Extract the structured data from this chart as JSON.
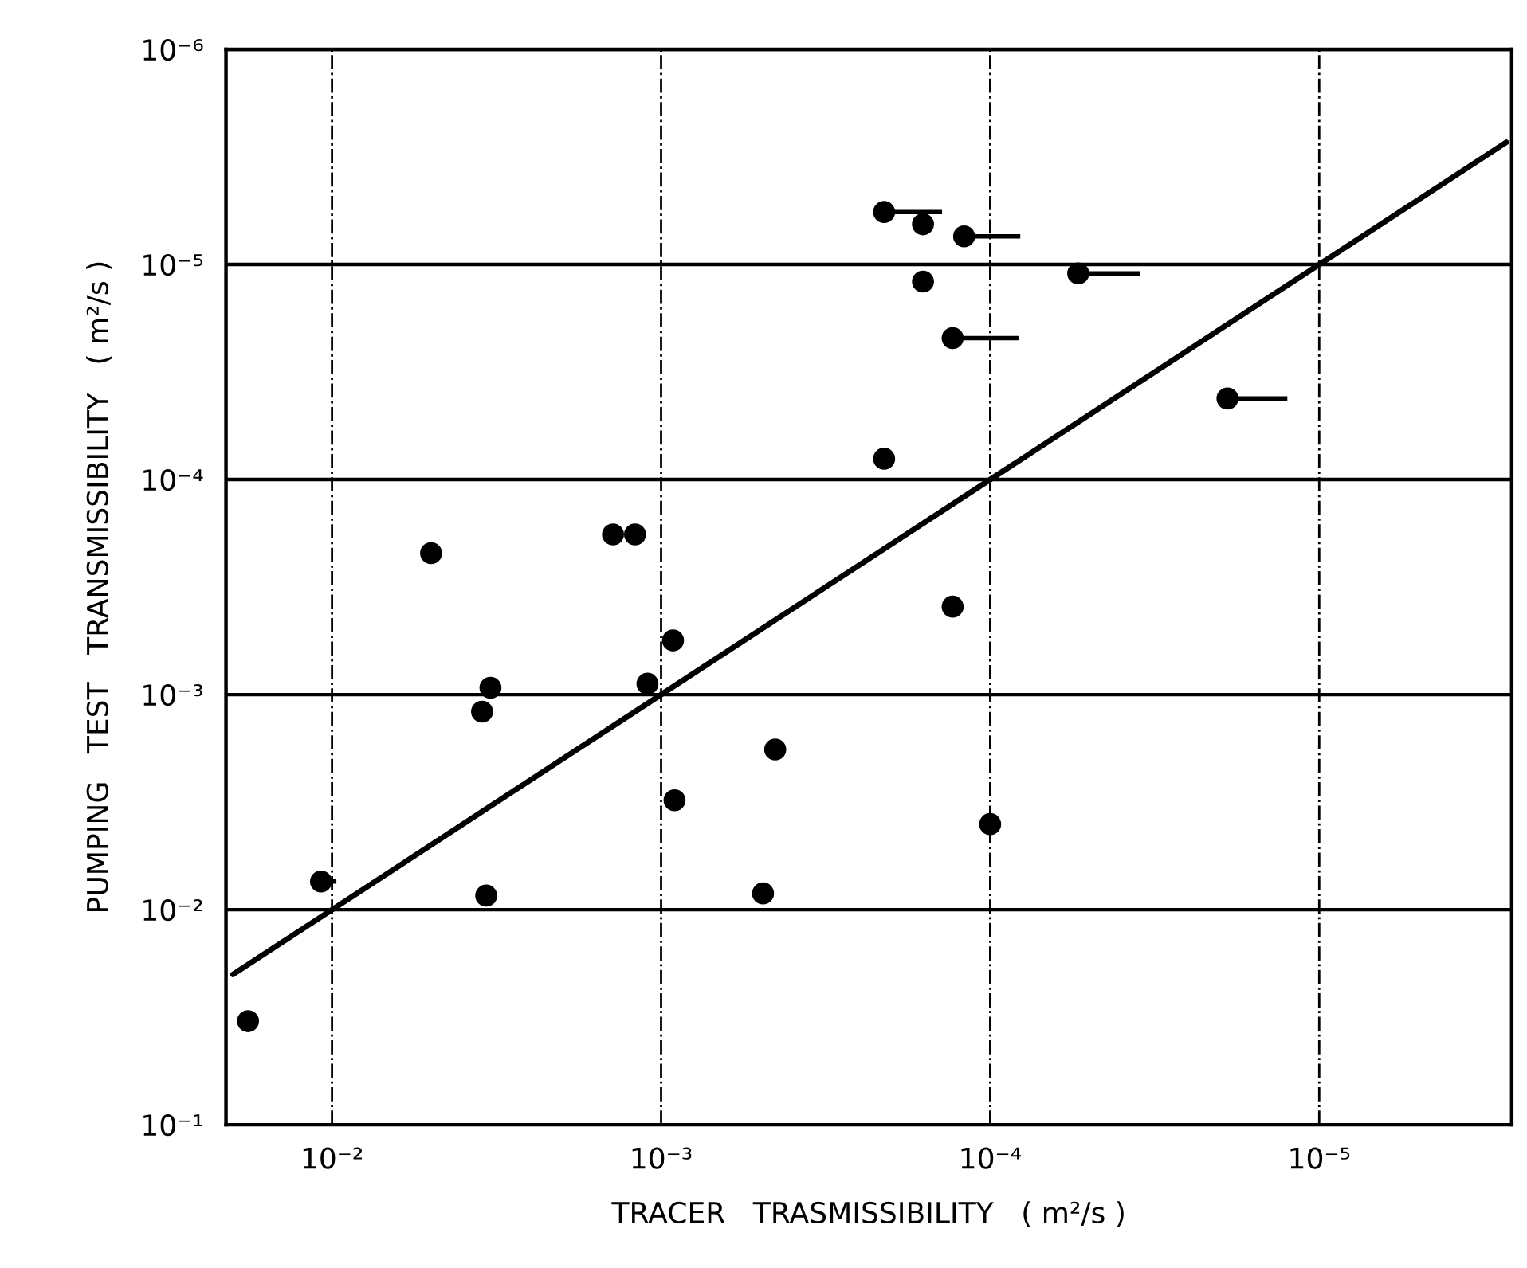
{
  "chart_data": {
    "type": "scatter",
    "xlabel": "TRACER   TRASMISSIBILITY   ( m²/s )",
    "ylabel": "PUMPING   TEST   TRANSMISSIBILITY   ( m²/s )",
    "log": "xy",
    "xlim": [
      0.021,
      2.6e-06
    ],
    "ylim": [
      0.1,
      1e-06
    ],
    "xticks": [
      {
        "value": 0.01,
        "label": "10⁻²"
      },
      {
        "value": 0.001,
        "label": "10⁻³"
      },
      {
        "value": 0.0001,
        "label": "10⁻⁴"
      },
      {
        "value": 1e-05,
        "label": "10⁻⁵"
      }
    ],
    "yticks": [
      {
        "value": 0.1,
        "label": "10⁻¹"
      },
      {
        "value": 0.01,
        "label": "10⁻²"
      },
      {
        "value": 0.001,
        "label": "10⁻³"
      },
      {
        "value": 0.0001,
        "label": "10⁻⁴"
      },
      {
        "value": 1e-05,
        "label": "10⁻⁵"
      },
      {
        "value": 1e-06,
        "label": "10⁻⁶"
      }
    ],
    "grid": true,
    "series": [
      {
        "color": "#000000",
        "marker": "circle",
        "x": [
          0.00021,
          0.00016,
          0.00012,
          0.00016,
          5.4e-05,
          0.00013,
          1.9e-05,
          0.00021,
          0.00013,
          0.0001,
          0.005,
          0.0014,
          0.0012,
          0.00092,
          0.0033,
          0.0011,
          0.0035,
          0.00045,
          0.00091,
          0.0108,
          0.0034,
          0.00049,
          0.018
        ],
        "values": [
          5.7e-06,
          6.5e-06,
          7.4e-06,
          1.2e-05,
          1.1e-05,
          2.2e-05,
          4.2e-05,
          8e-05,
          0.00039,
          0.004,
          0.00022,
          0.00018,
          0.00018,
          0.00056,
          0.00093,
          0.00089,
          0.0012,
          0.0018,
          0.0031,
          0.0074,
          0.0086,
          0.0084,
          0.033
        ],
        "xerrors": [
          [
            0.00014,
            0.00021
          ],
          null,
          [
            8.1e-05,
            0.00012
          ],
          null,
          [
            3.5e-05,
            5.4e-05
          ],
          [
            8.2e-05,
            0.00013
          ],
          [
            1.25e-05,
            1.9e-05
          ],
          null,
          null,
          null,
          null,
          null,
          null,
          null,
          null,
          null,
          null,
          null,
          null,
          [
            0.0097,
            0.0108
          ],
          null,
          null,
          null
        ]
      },
      {
        "type": "line",
        "color": "#000000",
        "line_style": "solid",
        "x": [
          0.02,
          2.7e-06
        ],
        "values": [
          0.02,
          2.7e-06
        ]
      }
    ]
  }
}
